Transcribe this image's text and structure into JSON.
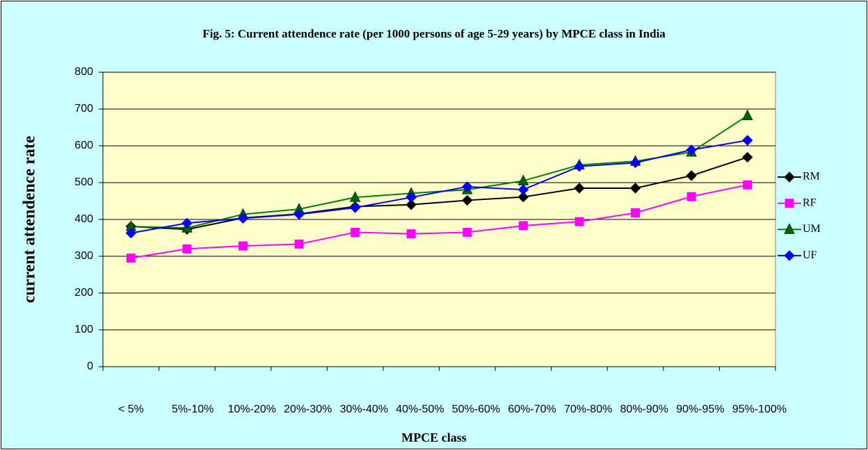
{
  "chart_data": {
    "type": "line",
    "title": "Fig. 5: Current attendence rate (per 1000 persons of age 5-29 years) by MPCE class in India",
    "x_label": "MPCE class",
    "y_label": "current attendence rate",
    "categories": [
      "< 5%",
      "5%-10%",
      "10%-20%",
      "20%-30%",
      "30%-40%",
      "40%-50%",
      "50%-60%",
      "60%-70%",
      "70%-80%",
      "80%-90%",
      "90%-95%",
      "95%-100%"
    ],
    "series": [
      {
        "name": "RM",
        "color": "#000000",
        "marker": "diamond",
        "values": [
          381,
          373,
          404,
          415,
          435,
          440,
          452,
          461,
          485,
          485,
          519,
          569
        ]
      },
      {
        "name": "RF",
        "color": "#ff00ff",
        "marker": "square",
        "values": [
          295,
          320,
          328,
          333,
          365,
          361,
          365,
          383,
          394,
          418,
          462,
          494
        ]
      },
      {
        "name": "UM",
        "color": "#008000",
        "marker": "triangle",
        "values": [
          381,
          377,
          414,
          428,
          460,
          471,
          481,
          505,
          548,
          558,
          583,
          682
        ]
      },
      {
        "name": "UF",
        "color": "#0000ff",
        "marker": "diamond",
        "values": [
          363,
          390,
          403,
          414,
          432,
          460,
          489,
          481,
          544,
          554,
          589,
          615
        ]
      }
    ],
    "ylim": [
      0,
      800
    ],
    "yticks": [
      0,
      100,
      200,
      300,
      400,
      500,
      600,
      700,
      800
    ],
    "grid": true,
    "legend": "right"
  }
}
